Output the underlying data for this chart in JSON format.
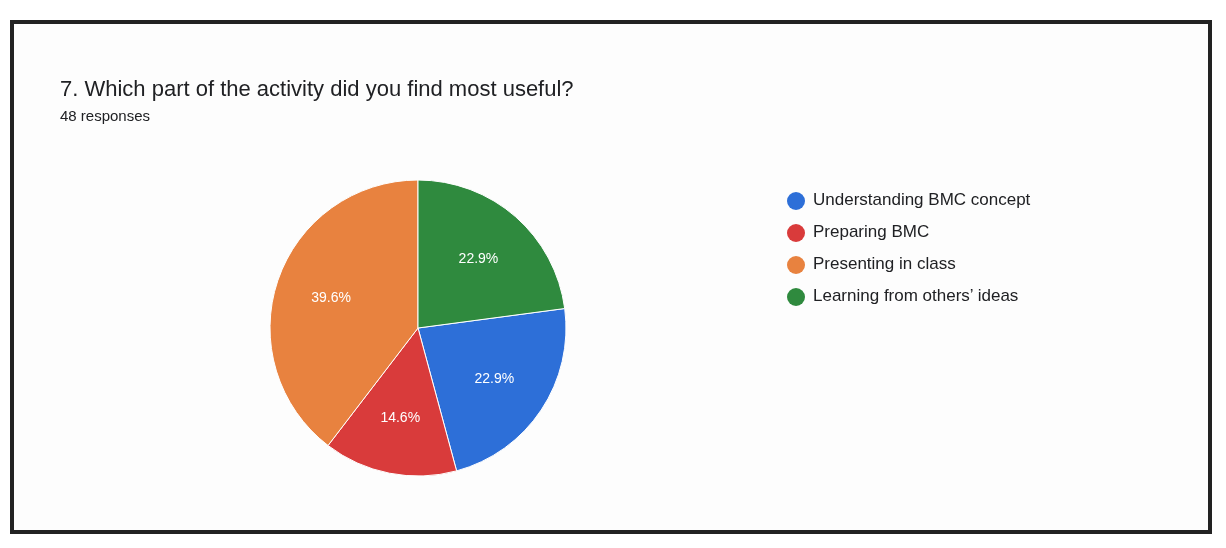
{
  "chart_data": {
    "type": "pie",
    "title": "7. Which part of the activity did you find most useful?",
    "subtitle": "48 responses",
    "categories": [
      "Understanding BMC concept",
      "Preparing BMC",
      "Presenting in class",
      "Learning from others’ ideas"
    ],
    "values": [
      22.9,
      14.6,
      39.6,
      22.9
    ],
    "colors": [
      "#2d6fd8",
      "#d93b3b",
      "#e8823f",
      "#2f8a3e"
    ],
    "value_labels": [
      "22.9%",
      "14.6%",
      "39.6%",
      "22.9%"
    ],
    "legend": "right"
  }
}
